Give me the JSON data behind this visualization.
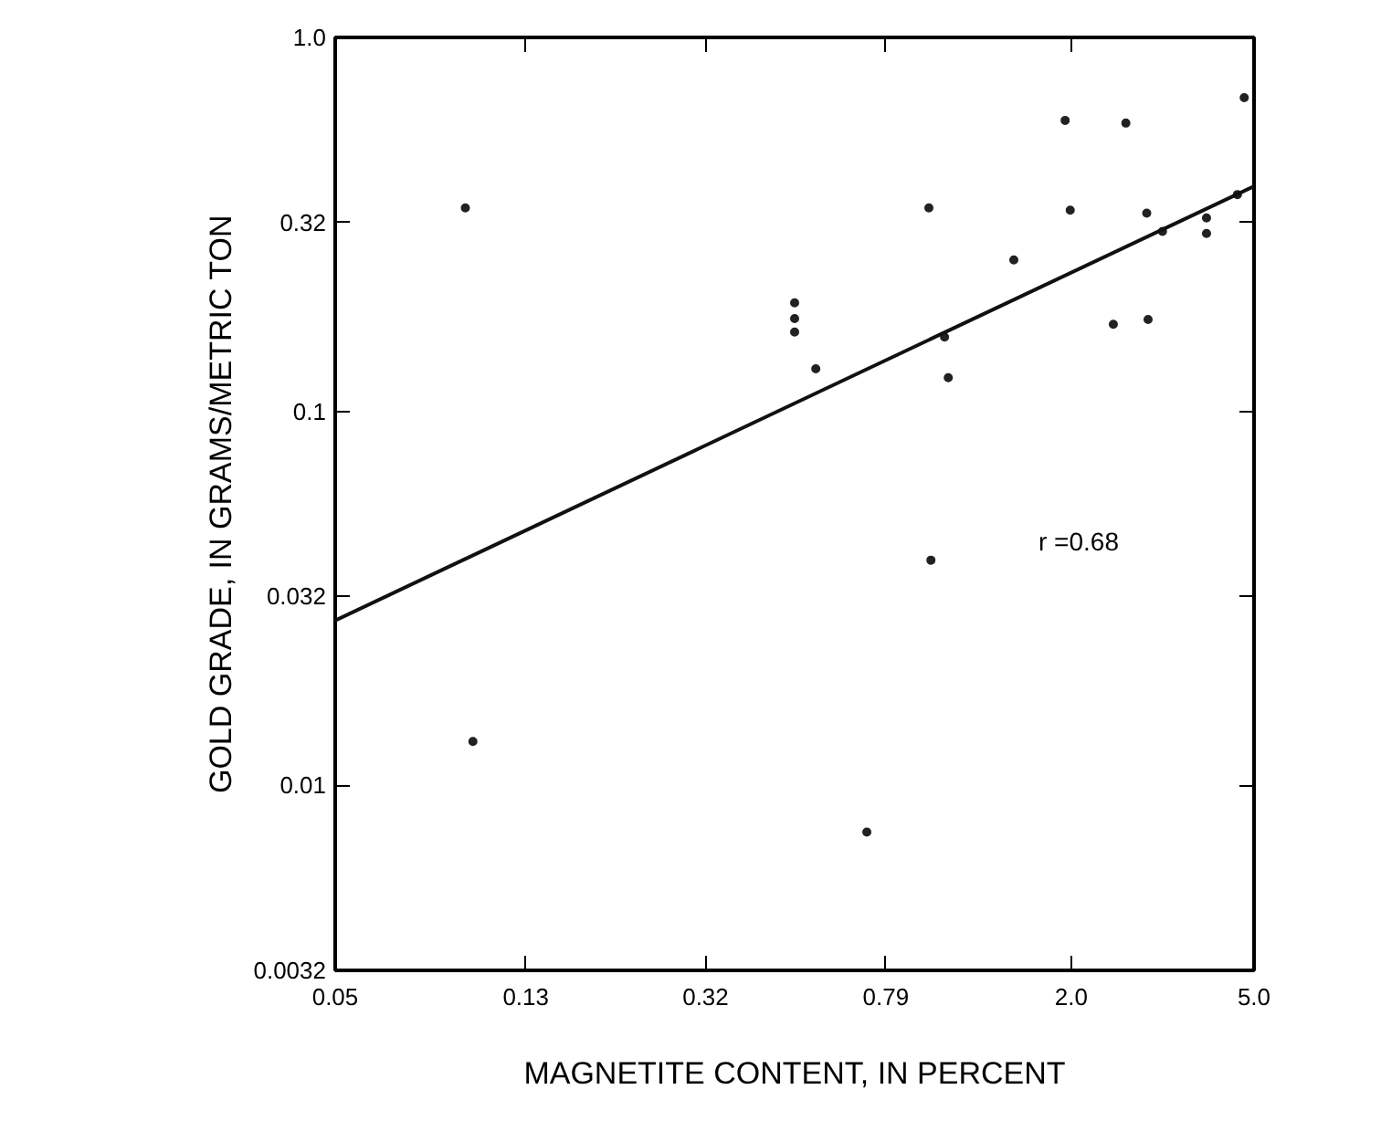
{
  "chart_data": {
    "type": "scatter",
    "xlabel": "MAGNETITE CONTENT, IN PERCENT",
    "ylabel": "GOLD GRADE, IN GRAMS/METRIC TON",
    "log": "xy",
    "grid": false,
    "xlim": [
      0.05,
      5.0
    ],
    "ylim": [
      0.0032,
      1.0
    ],
    "xticks": [
      0.05,
      0.13,
      0.32,
      0.79,
      {
        "value": 2.0,
        "label": "2.0"
      },
      {
        "value": 5.0,
        "label": "5.0"
      }
    ],
    "yticks": [
      0.0032,
      0.01,
      0.032,
      0.1,
      0.32,
      {
        "value": 1.0,
        "label": "1.0"
      }
    ],
    "series": [
      {
        "marker": "circle",
        "color": "#222222",
        "x": [
          0.096,
          0.5,
          0.5,
          0.5,
          4.76,
          1.94,
          2.63,
          0.98,
          1.99,
          2.92,
          3.94,
          3.94,
          3.16,
          4.6,
          1.5,
          0.556,
          1.06,
          1.08,
          2.47,
          2.94,
          0.0997,
          0.99,
          0.718
        ],
        "values": [
          0.35,
          0.195,
          0.177,
          0.163,
          0.69,
          0.6,
          0.59,
          0.35,
          0.345,
          0.339,
          0.329,
          0.299,
          0.303,
          0.38,
          0.254,
          0.13,
          0.158,
          0.123,
          0.171,
          0.176,
          0.0131,
          0.04,
          0.0075
        ]
      },
      {
        "type": "line",
        "color": "#111111",
        "x": [
          0.05,
          5.0
        ],
        "values": [
          0.0276,
          0.4
        ]
      }
    ],
    "annotations": [
      "r =0.68"
    ]
  }
}
